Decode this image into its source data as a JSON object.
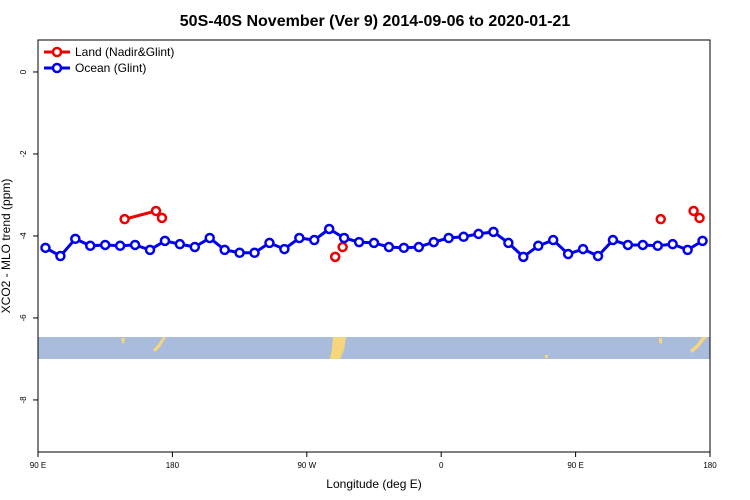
{
  "chart_data": {
    "type": "line",
    "title": "50S-40S November (Ver 9)   2014-09-06 to 2020-01-21",
    "x_label": "Longitude (deg E)",
    "y_label": "XCO2 - MLO trend (ppm)",
    "xlim": [
      90,
      540
    ],
    "ylim": [
      -9.27,
      0.78
    ],
    "xticks": [
      {
        "value": 90,
        "label": "90 E"
      },
      180,
      {
        "value": 270,
        "label": "90 W"
      },
      {
        "value": 360,
        "label": "0"
      },
      {
        "value": 450,
        "label": "90 E"
      },
      {
        "value": 540,
        "label": "180"
      }
    ],
    "yticks": [
      0,
      -2,
      -4,
      -6,
      -8
    ],
    "legend": "top-left",
    "series": [
      {
        "name": "Land (Nadir&Glint)",
        "color": "#ee0000",
        "x": [
          148,
          169,
          173,
          null,
          289,
          null,
          294,
          null,
          507,
          null,
          529,
          533
        ],
        "values": [
          -3.59,
          -3.39,
          -3.56,
          null,
          -4.51,
          null,
          -4.27,
          null,
          -3.59,
          null,
          -3.39,
          -3.56
        ]
      },
      {
        "name": "Ocean (Glint)",
        "color": "#0000ee",
        "x": [
          95,
          105,
          115,
          125,
          135,
          145,
          155,
          165,
          175,
          185,
          195,
          205,
          215,
          225,
          235,
          245,
          255,
          265,
          275,
          285,
          295,
          305,
          315,
          325,
          335,
          345,
          355,
          365,
          375,
          385,
          395,
          405,
          415,
          425,
          435,
          445,
          455,
          465,
          475,
          485,
          495,
          505,
          515,
          525,
          535
        ],
        "values": [
          -4.29,
          -4.49,
          -4.07,
          -4.24,
          -4.22,
          -4.24,
          -4.22,
          -4.34,
          -4.12,
          -4.2,
          -4.27,
          -4.05,
          -4.34,
          -4.41,
          -4.41,
          -4.17,
          -4.32,
          -4.05,
          -4.1,
          -3.83,
          -4.05,
          -4.15,
          -4.17,
          -4.27,
          -4.29,
          -4.27,
          -4.15,
          -4.05,
          -4.02,
          -3.95,
          -3.9,
          -4.17,
          -4.51,
          -4.24,
          -4.1,
          -4.44,
          -4.32,
          -4.49,
          -4.1,
          -4.22,
          -4.22,
          -4.24,
          -4.2,
          -4.34,
          -4.12
        ]
      }
    ]
  }
}
